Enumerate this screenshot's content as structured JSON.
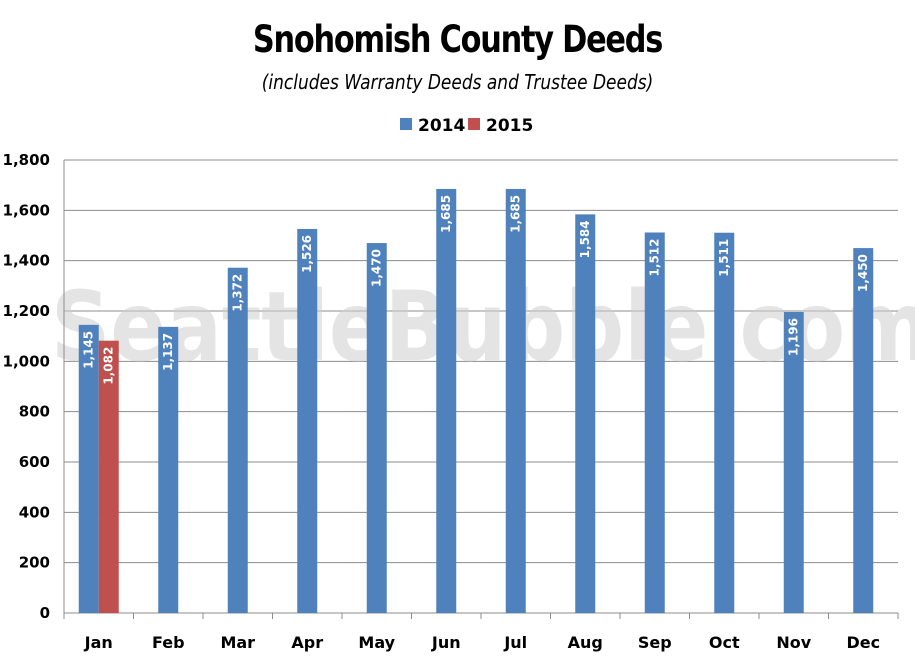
{
  "chart_data": {
    "type": "bar",
    "title": "Snohomish County Deeds",
    "subtitle": "(includes Warranty Deeds and Trustee Deeds)",
    "watermark": "SeattleBubble.com",
    "categories": [
      "Jan",
      "Feb",
      "Mar",
      "Apr",
      "May",
      "Jun",
      "Jul",
      "Aug",
      "Sep",
      "Oct",
      "Nov",
      "Dec"
    ],
    "series": [
      {
        "name": "2014",
        "color": "#4f81bd",
        "values": [
          1145,
          1137,
          1372,
          1526,
          1470,
          1685,
          1685,
          1584,
          1512,
          1511,
          1196,
          1450
        ],
        "labels": [
          "1,145",
          "1,137",
          "1,372",
          "1,526",
          "1,470",
          "1,685",
          "1,685",
          "1,584",
          "1,512",
          "1,511",
          "1,196",
          "1,450"
        ]
      },
      {
        "name": "2015",
        "color": "#c0504d",
        "values": [
          1082,
          null,
          null,
          null,
          null,
          null,
          null,
          null,
          null,
          null,
          null,
          null
        ],
        "labels": [
          "1,082",
          "",
          "",
          "",
          "",
          "",
          "",
          "",
          "",
          "",
          "",
          ""
        ]
      }
    ],
    "ylim": [
      0,
      1800
    ],
    "yticks": [
      0,
      200,
      400,
      600,
      800,
      1000,
      1200,
      1400,
      1600,
      1800
    ],
    "ytick_labels": [
      "0",
      "200",
      "400",
      "600",
      "800",
      "1,000",
      "1,200",
      "1,400",
      "1,600",
      "1,800"
    ],
    "xlabel": "",
    "ylabel": "",
    "grid": true,
    "legend_position": "top-center"
  }
}
